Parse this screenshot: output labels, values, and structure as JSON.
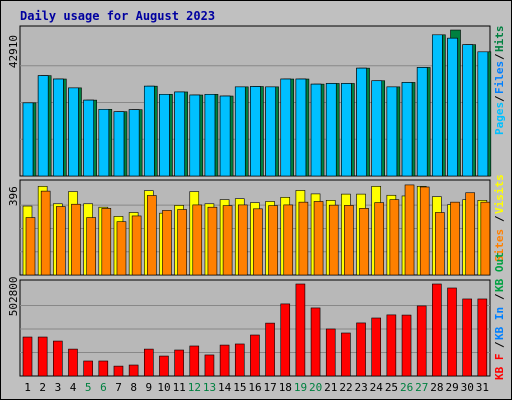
{
  "title": "Daily usage for August 2023",
  "colors": {
    "background": "#c0c0c0",
    "plot_background": "#b8b8b8",
    "gridline": "#888888",
    "title": "#0000a0",
    "pages": "#00c0ff",
    "files": "#0080ff",
    "hits": "#008040",
    "sites": "#ff8000",
    "visits": "#ffff00",
    "kbytes": "#ff0000",
    "kb_in": "#0080ff",
    "kb_out": "#00a040",
    "weekend_label": "#008040",
    "weekday_label": "#000000"
  },
  "chart_data": [
    {
      "type": "bar",
      "panel": "top",
      "y_tick_label": "42910",
      "ylim": [
        0,
        42910
      ],
      "legend_placement": "right-vertical",
      "legend": [
        "Pages",
        "Files",
        "Hits"
      ],
      "categories": [
        "1",
        "2",
        "3",
        "4",
        "5",
        "6",
        "7",
        "8",
        "9",
        "10",
        "11",
        "12",
        "13",
        "14",
        "15",
        "16",
        "17",
        "18",
        "19",
        "20",
        "21",
        "22",
        "23",
        "24",
        "25",
        "26",
        "27",
        "28",
        "29",
        "30",
        "31"
      ],
      "weekend_days": [
        "5",
        "6",
        "12",
        "13",
        "19",
        "20",
        "26",
        "27"
      ],
      "series": [
        {
          "name": "Hits",
          "values": [
            21500,
            29500,
            28500,
            25900,
            22300,
            19600,
            18900,
            19500,
            26400,
            24000,
            24700,
            23800,
            24000,
            23500,
            26200,
            26300,
            26200,
            28500,
            28500,
            27000,
            27200,
            27200,
            31700,
            28000,
            26200,
            27500,
            31900,
            41500,
            42900,
            38600,
            36500
          ]
        },
        {
          "name": "Files",
          "values": [
            21500,
            29500,
            28500,
            25900,
            22300,
            19600,
            18900,
            19500,
            26400,
            24000,
            24700,
            23800,
            24000,
            23500,
            26200,
            26300,
            26200,
            28500,
            28500,
            27000,
            27200,
            27200,
            31700,
            28000,
            26200,
            27500,
            31900,
            41500,
            40500,
            38600,
            36500
          ]
        },
        {
          "name": "Pages",
          "values": [
            21500,
            29500,
            28500,
            25900,
            22300,
            19600,
            18900,
            19500,
            26400,
            24000,
            24700,
            23800,
            24000,
            23500,
            26200,
            26300,
            26200,
            28500,
            28500,
            27000,
            27200,
            27200,
            31700,
            28000,
            26200,
            27500,
            31900,
            41500,
            40500,
            38600,
            36500
          ]
        }
      ]
    },
    {
      "type": "bar",
      "panel": "middle",
      "y_tick_label": "396",
      "ylim": [
        0,
        396
      ],
      "legend_placement": "right-vertical",
      "legend": [
        "Sites",
        "Visits"
      ],
      "categories": [
        "1",
        "2",
        "3",
        "4",
        "5",
        "6",
        "7",
        "8",
        "9",
        "10",
        "11",
        "12",
        "13",
        "14",
        "15",
        "16",
        "17",
        "18",
        "19",
        "20",
        "21",
        "22",
        "23",
        "24",
        "25",
        "26",
        "27",
        "28",
        "29",
        "30",
        "31"
      ],
      "series": [
        {
          "name": "Visits",
          "values": [
            300,
            386,
            310,
            363,
            310,
            295,
            255,
            272,
            367,
            269,
            303,
            363,
            310,
            328,
            332,
            315,
            320,
            338,
            368,
            353,
            325,
            352,
            352,
            386,
            347,
            344,
            386,
            341,
            306,
            328,
            325
          ]
        },
        {
          "name": "Sites",
          "values": [
            250,
            365,
            298,
            308,
            250,
            290,
            232,
            257,
            346,
            281,
            285,
            305,
            295,
            302,
            305,
            288,
            302,
            305,
            317,
            320,
            304,
            303,
            290,
            315,
            328,
            392,
            383,
            272,
            317,
            358,
            317
          ]
        }
      ]
    },
    {
      "type": "bar",
      "panel": "bottom",
      "y_tick_label": "502800",
      "ylim": [
        0,
        502800
      ],
      "legend_placement": "right-vertical",
      "legend": [
        "KB F",
        "KB In",
        "KB Out"
      ],
      "categories": [
        "1",
        "2",
        "3",
        "4",
        "5",
        "6",
        "7",
        "8",
        "9",
        "10",
        "11",
        "12",
        "13",
        "14",
        "15",
        "16",
        "17",
        "18",
        "19",
        "20",
        "21",
        "22",
        "23",
        "24",
        "25",
        "26",
        "27",
        "28",
        "29",
        "30",
        "31"
      ],
      "series": [
        {
          "name": "KB F",
          "values": [
            213000,
            213000,
            191000,
            147000,
            82000,
            82000,
            54000,
            60000,
            147000,
            109000,
            142000,
            164000,
            115000,
            169000,
            175000,
            224000,
            289000,
            394000,
            502800,
            372000,
            257000,
            235000,
            290000,
            317000,
            334000,
            333000,
            383000,
            502800,
            481000,
            421000,
            421000
          ]
        }
      ]
    }
  ]
}
